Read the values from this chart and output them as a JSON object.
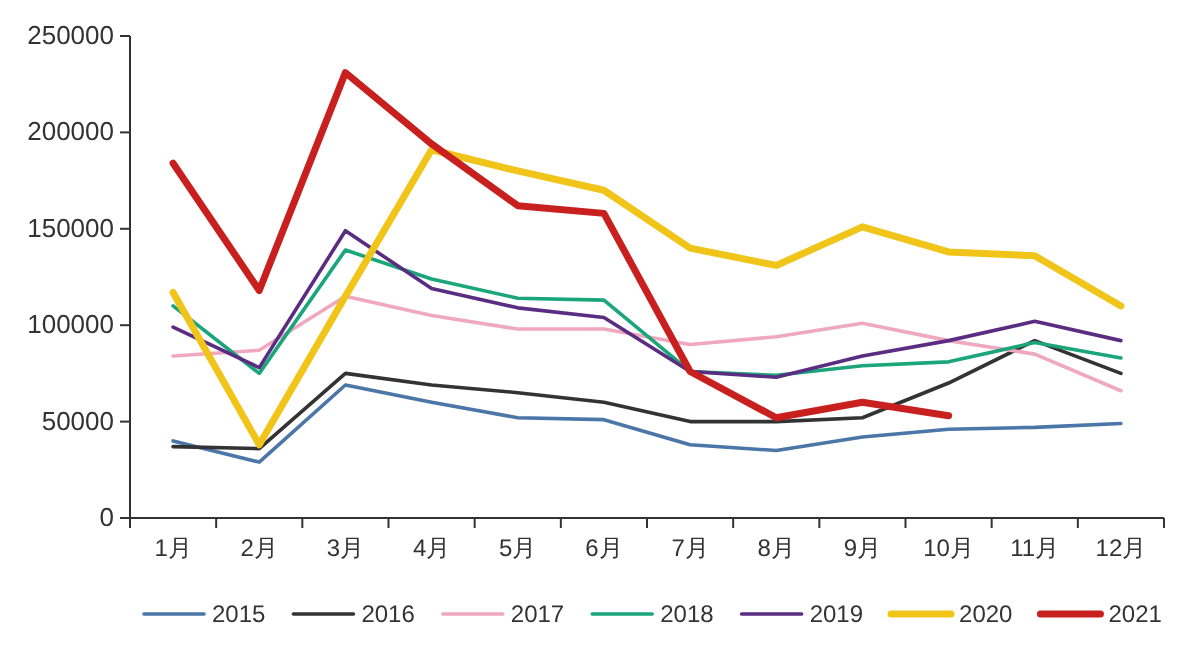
{
  "chart_data": {
    "type": "line",
    "categories": [
      "1月",
      "2月",
      "3月",
      "4月",
      "5月",
      "6月",
      "7月",
      "8月",
      "9月",
      "10月",
      "11月",
      "12月"
    ],
    "series": [
      {
        "name": "2015",
        "color": "#4a76a8",
        "values": [
          40000,
          29000,
          69000,
          60000,
          52000,
          51000,
          38000,
          35000,
          42000,
          46000,
          47000,
          49000
        ]
      },
      {
        "name": "2016",
        "color": "#333333",
        "values": [
          37000,
          36000,
          75000,
          69000,
          65000,
          60000,
          50000,
          50000,
          52000,
          70000,
          92000,
          75000
        ]
      },
      {
        "name": "2017",
        "color": "#f0a8c0",
        "values": [
          84000,
          87000,
          115000,
          105000,
          98000,
          98000,
          90000,
          94000,
          101000,
          92000,
          85000,
          66000
        ]
      },
      {
        "name": "2018",
        "color": "#1aa57a",
        "values": [
          110000,
          75000,
          139000,
          124000,
          114000,
          113000,
          76000,
          74000,
          79000,
          81000,
          91000,
          83000
        ]
      },
      {
        "name": "2019",
        "color": "#5a2d82",
        "values": [
          99000,
          78000,
          149000,
          119000,
          109000,
          104000,
          76000,
          73000,
          84000,
          92000,
          102000,
          92000
        ]
      },
      {
        "name": "2020",
        "color": "#f0c419",
        "values": [
          117000,
          38000,
          115000,
          191000,
          180000,
          170000,
          140000,
          131000,
          151000,
          138000,
          136000,
          110000
        ]
      },
      {
        "name": "2021",
        "color": "#c8201e",
        "values": [
          184000,
          118000,
          231000,
          194000,
          162000,
          158000,
          76000,
          52000,
          60000,
          53000,
          null,
          null
        ]
      }
    ],
    "ylim": [
      0,
      250000
    ],
    "yticks": [
      0,
      50000,
      100000,
      150000,
      200000,
      250000
    ],
    "grid": false,
    "legend": "bottom",
    "marker": "none",
    "line_style": "solid"
  }
}
